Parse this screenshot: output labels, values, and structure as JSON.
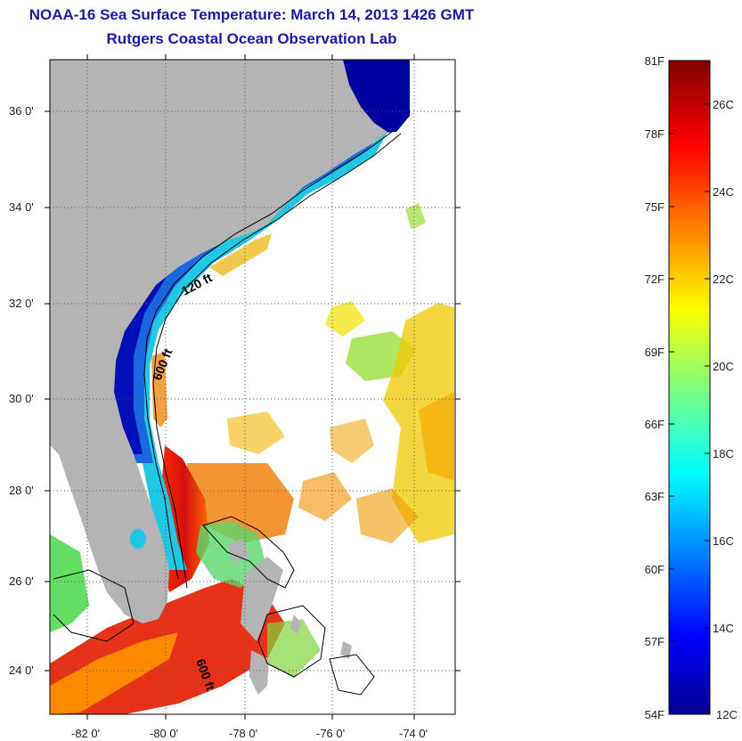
{
  "header": {
    "title": "NOAA-16 Sea Surface Temperature:  March 14, 2013 1426 GMT",
    "subtitle": "Rutgers Coastal Ocean Observation Lab"
  },
  "map": {
    "lat_labels": [
      "36 0'",
      "34 0'",
      "32 0'",
      "30 0'",
      "28 0'",
      "26 0'",
      "24 0'"
    ],
    "lon_labels": [
      "-82 0'",
      "-80 0'",
      "-78 0'",
      "-76 0'",
      "-74 0'"
    ],
    "contours": [
      {
        "label": "120 ft"
      },
      {
        "label": "600 ft"
      },
      {
        "label": "600 ft"
      }
    ],
    "colors": {
      "land": "#b4b4b4",
      "cold": "#0000a0",
      "warm": "#cc1010",
      "no_data": "#ffffff"
    }
  },
  "colorbar": {
    "fahrenheit_labels": [
      "81F",
      "78F",
      "75F",
      "72F",
      "69F",
      "66F",
      "63F",
      "60F",
      "57F",
      "54F"
    ],
    "celsius_labels": [
      "26C",
      "24C",
      "22C",
      "20C",
      "18C",
      "16C",
      "14C",
      "12C"
    ],
    "range_f": [
      54,
      81
    ],
    "range_c": [
      12,
      27.2
    ]
  }
}
